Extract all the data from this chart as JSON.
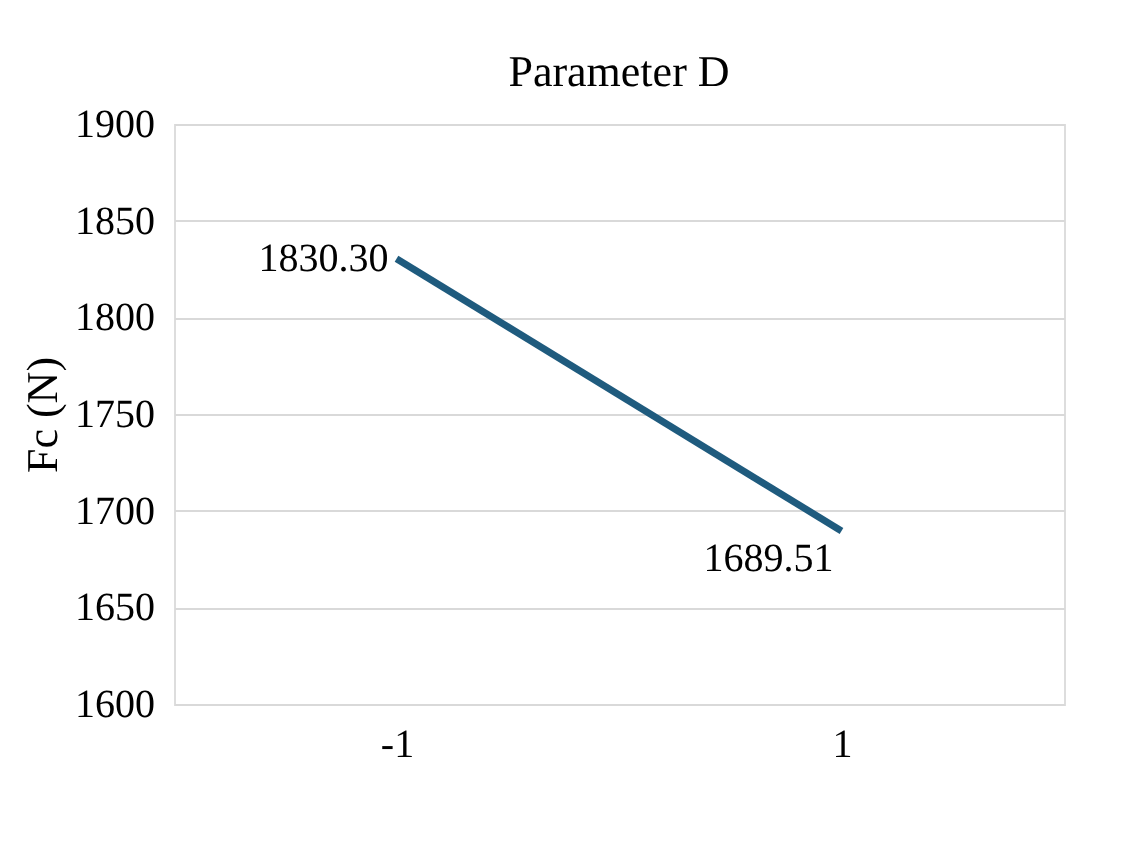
{
  "chart_data": {
    "type": "line",
    "title": "Parameter D",
    "ylabel": "Fc (N)",
    "categories": [
      "-1",
      "1"
    ],
    "series": [
      {
        "color": "#1f5b7e",
        "values": [
          1830.3,
          1689.51
        ],
        "value_labels": [
          "1830.30",
          "1689.51"
        ]
      }
    ],
    "ylim": [
      1600,
      1900
    ],
    "yticks": [
      1600,
      1650,
      1700,
      1750,
      1800,
      1850,
      1900
    ],
    "grid": "y",
    "marker": "none",
    "line_style": "solid"
  }
}
